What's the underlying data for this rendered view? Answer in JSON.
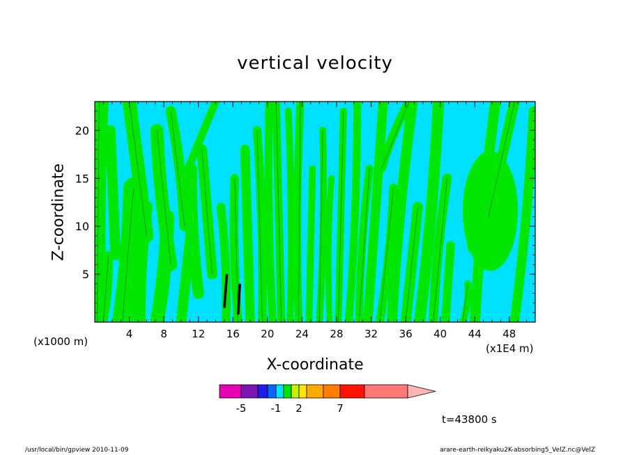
{
  "chart_data": {
    "type": "heatmap",
    "title": "vertical velocity",
    "xlabel": "X-coordinate",
    "ylabel": "Z-coordinate",
    "x_unit_left": "(x1000 m)",
    "x_unit_right": "(x1E4 m)",
    "xlim": [
      0,
      51
    ],
    "ylim": [
      0,
      23
    ],
    "x_ticks": [
      4,
      8,
      12,
      16,
      20,
      24,
      28,
      32,
      36,
      40,
      44,
      48
    ],
    "y_ticks": [
      5,
      10,
      15,
      20
    ],
    "time_label": "t=43800 s",
    "colorbar": {
      "colors": [
        "#e600b4",
        "#7d14b4",
        "#1e1ee6",
        "#0a64ff",
        "#00e1ff",
        "#00e600",
        "#c8f000",
        "#ffe600",
        "#ffaa00",
        "#ff7d00",
        "#ff1400",
        "#ff7878",
        "#ffb4b4"
      ],
      "tick_labels": [
        "-5",
        "-1",
        "2",
        "7"
      ]
    },
    "field_colors": {
      "negative": "#00e1ff",
      "positive": "#00e600",
      "contour": "#000000",
      "strong": "#000000"
    }
  },
  "footer": {
    "left": "/usr/local/bin/gpview   2010-11-09",
    "right": "arare-earth-reikyaku2K-absorbing5_VelZ.nc@VelZ"
  }
}
